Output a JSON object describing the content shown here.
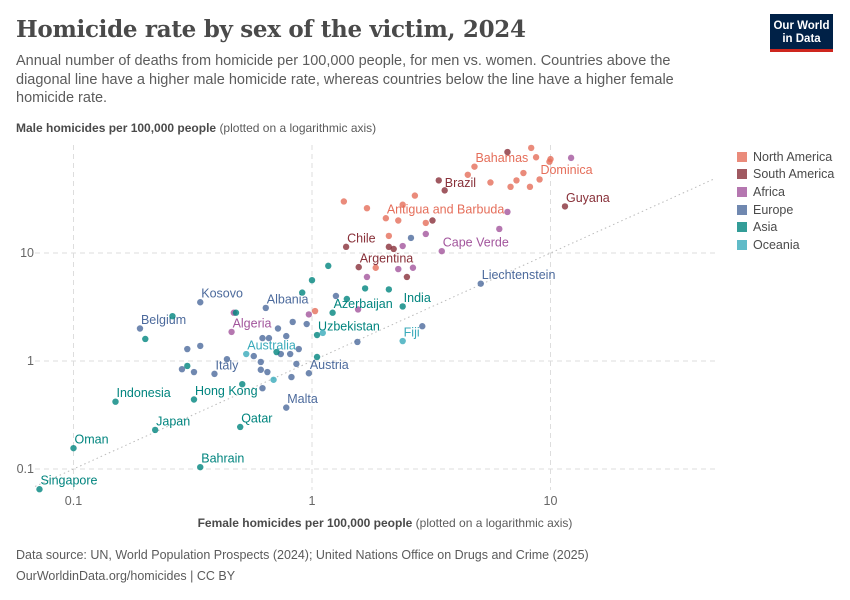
{
  "header": {
    "title": "Homicide rate by sex of the victim, 2024",
    "subtitle": "Annual number of deaths from homicide per 100,000 people, for men vs. women. Countries above the diagonal line have a higher male homicide rate, whereas countries below the line have a higher female homicide rate.",
    "logo": "Our World in Data"
  },
  "footer": {
    "source": "Data source: UN, World Population Prospects (2024); United Nations Office on Drugs and Crime (2025)",
    "link": "OurWorldinData.org/homicides | CC BY"
  },
  "chart_data": {
    "type": "scatter",
    "title": "Homicide rate by sex of the victim, 2024",
    "xlabel_bold": "Female homicides per 100,000 people",
    "xlabel_note": "(plotted on a logarithmic axis)",
    "ylabel_bold": "Male homicides per 100,000 people",
    "ylabel_note": "(plotted on a logarithmic axis)",
    "x_scale": "log",
    "y_scale": "log",
    "xlim": [
      0.069,
      49
    ],
    "ylim": [
      0.064,
      100
    ],
    "x_ticks": [
      "0.1",
      "1",
      "10"
    ],
    "y_ticks": [
      "0.1",
      "1",
      "10"
    ],
    "grid": true,
    "reference_line": "y = x (dotted diagonal)",
    "legend_position": "right",
    "legend": [
      {
        "name": "North America",
        "color": "#E56E5A"
      },
      {
        "name": "South America",
        "color": "#883039"
      },
      {
        "name": "Africa",
        "color": "#A2559C"
      },
      {
        "name": "Europe",
        "color": "#4C6A9C"
      },
      {
        "name": "Asia",
        "color": "#00847E"
      },
      {
        "name": "Oceania",
        "color": "#38AABA"
      }
    ],
    "points": [
      {
        "country": "Bahamas",
        "region": "North America",
        "x": 4.8,
        "y": 63
      },
      {
        "country": "Dominica",
        "region": "North America",
        "x": 9.9,
        "y": 70
      },
      {
        "country": "Antigua and Barbuda",
        "region": "North America",
        "x": 2.04,
        "y": 21
      },
      {
        "region": "North America",
        "x": 8.3,
        "y": 94
      },
      {
        "region": "North America",
        "x": 8.7,
        "y": 77
      },
      {
        "region": "North America",
        "x": 10,
        "y": 74
      },
      {
        "region": "North America",
        "x": 4.5,
        "y": 53
      },
      {
        "region": "North America",
        "x": 7.7,
        "y": 55
      },
      {
        "region": "North America",
        "x": 7.2,
        "y": 47
      },
      {
        "region": "North America",
        "x": 9.0,
        "y": 48
      },
      {
        "region": "North America",
        "x": 5.6,
        "y": 45
      },
      {
        "region": "North America",
        "x": 6.8,
        "y": 41
      },
      {
        "region": "North America",
        "x": 8.2,
        "y": 41
      },
      {
        "region": "North America",
        "x": 2.7,
        "y": 34
      },
      {
        "region": "North America",
        "x": 2.4,
        "y": 28
      },
      {
        "region": "North America",
        "x": 1.7,
        "y": 26
      },
      {
        "region": "North America",
        "x": 1.36,
        "y": 30
      },
      {
        "region": "North America",
        "x": 2.3,
        "y": 20
      },
      {
        "region": "North America",
        "x": 3.0,
        "y": 19
      },
      {
        "region": "North America",
        "x": 2.1,
        "y": 14.4
      },
      {
        "region": "North America",
        "x": 1.85,
        "y": 7.3
      },
      {
        "region": "North America",
        "x": 1.03,
        "y": 2.9
      },
      {
        "country": "Brazil",
        "region": "South America",
        "x": 3.4,
        "y": 47
      },
      {
        "country": "Guyana",
        "region": "South America",
        "x": 11.5,
        "y": 27
      },
      {
        "country": "Chile",
        "region": "South America",
        "x": 1.39,
        "y": 11.4
      },
      {
        "country": "Argentina",
        "region": "South America",
        "x": 1.57,
        "y": 7.4
      },
      {
        "region": "South America",
        "x": 6.6,
        "y": 86
      },
      {
        "region": "South America",
        "x": 3.6,
        "y": 38
      },
      {
        "region": "South America",
        "x": 3.2,
        "y": 20
      },
      {
        "region": "South America",
        "x": 2.1,
        "y": 11.4
      },
      {
        "region": "South America",
        "x": 2.2,
        "y": 10.9
      },
      {
        "region": "South America",
        "x": 2.5,
        "y": 6.0
      },
      {
        "country": "Cape Verde",
        "region": "Africa",
        "x": 3.5,
        "y": 10.4
      },
      {
        "country": "Algeria",
        "region": "Africa",
        "x": 0.46,
        "y": 1.86
      },
      {
        "region": "Africa",
        "x": 12.2,
        "y": 76
      },
      {
        "region": "Africa",
        "x": 6.6,
        "y": 24
      },
      {
        "region": "Africa",
        "x": 6.1,
        "y": 16.7
      },
      {
        "region": "Africa",
        "x": 3.0,
        "y": 15
      },
      {
        "region": "Africa",
        "x": 2.4,
        "y": 11.6
      },
      {
        "region": "Africa",
        "x": 2.3,
        "y": 7.1
      },
      {
        "region": "Africa",
        "x": 2.65,
        "y": 7.3
      },
      {
        "region": "Africa",
        "x": 1.7,
        "y": 6.0
      },
      {
        "region": "Africa",
        "x": 0.47,
        "y": 2.8
      },
      {
        "region": "Africa",
        "x": 0.97,
        "y": 2.7
      },
      {
        "region": "Africa",
        "x": 1.56,
        "y": 3.0
      },
      {
        "country": "Liechtenstein",
        "region": "Europe",
        "x": 5.1,
        "y": 5.2
      },
      {
        "country": "Kosovo",
        "region": "Europe",
        "x": 0.34,
        "y": 3.5
      },
      {
        "country": "Albania",
        "region": "Europe",
        "x": 0.64,
        "y": 3.1
      },
      {
        "country": "Belgium",
        "region": "Europe",
        "x": 0.19,
        "y": 2.0
      },
      {
        "country": "Italy",
        "region": "Europe",
        "x": 0.39,
        "y": 0.76
      },
      {
        "country": "Austria",
        "region": "Europe",
        "x": 0.97,
        "y": 0.77
      },
      {
        "country": "Malta",
        "region": "Europe",
        "x": 0.78,
        "y": 0.37
      },
      {
        "region": "Europe",
        "x": 2.6,
        "y": 13.8
      },
      {
        "region": "Europe",
        "x": 1.26,
        "y": 4.0
      },
      {
        "region": "Europe",
        "x": 0.83,
        "y": 2.3
      },
      {
        "region": "Europe",
        "x": 0.72,
        "y": 2.0
      },
      {
        "region": "Europe",
        "x": 0.95,
        "y": 2.2
      },
      {
        "region": "Europe",
        "x": 1.55,
        "y": 1.5
      },
      {
        "region": "Europe",
        "x": 2.9,
        "y": 2.1
      },
      {
        "region": "Europe",
        "x": 0.62,
        "y": 1.63
      },
      {
        "region": "Europe",
        "x": 0.66,
        "y": 1.63
      },
      {
        "region": "Europe",
        "x": 0.78,
        "y": 1.7
      },
      {
        "region": "Europe",
        "x": 0.3,
        "y": 1.29
      },
      {
        "region": "Europe",
        "x": 0.34,
        "y": 1.38
      },
      {
        "region": "Europe",
        "x": 0.57,
        "y": 1.11
      },
      {
        "region": "Europe",
        "x": 0.74,
        "y": 1.16
      },
      {
        "region": "Europe",
        "x": 0.81,
        "y": 1.16
      },
      {
        "region": "Europe",
        "x": 0.88,
        "y": 1.29
      },
      {
        "region": "Europe",
        "x": 0.44,
        "y": 1.04
      },
      {
        "region": "Europe",
        "x": 0.285,
        "y": 0.84
      },
      {
        "region": "Europe",
        "x": 0.32,
        "y": 0.79
      },
      {
        "region": "Europe",
        "x": 0.61,
        "y": 0.98
      },
      {
        "region": "Europe",
        "x": 0.61,
        "y": 0.83
      },
      {
        "region": "Europe",
        "x": 0.65,
        "y": 0.79
      },
      {
        "region": "Europe",
        "x": 0.86,
        "y": 0.94
      },
      {
        "region": "Europe",
        "x": 0.82,
        "y": 0.71
      },
      {
        "region": "Europe",
        "x": 0.62,
        "y": 0.56
      },
      {
        "country": "India",
        "region": "Asia",
        "x": 2.4,
        "y": 3.2
      },
      {
        "country": "Azerbaijan",
        "region": "Asia",
        "x": 1.22,
        "y": 2.8
      },
      {
        "country": "Uzbekistan",
        "region": "Asia",
        "x": 1.05,
        "y": 1.74
      },
      {
        "country": "Hong Kong",
        "region": "Asia",
        "x": 0.32,
        "y": 0.44
      },
      {
        "country": "Indonesia",
        "region": "Asia",
        "x": 0.15,
        "y": 0.42
      },
      {
        "country": "Qatar",
        "region": "Asia",
        "x": 0.5,
        "y": 0.245
      },
      {
        "country": "Japan",
        "region": "Asia",
        "x": 0.22,
        "y": 0.23
      },
      {
        "country": "Oman",
        "region": "Asia",
        "x": 0.1,
        "y": 0.156
      },
      {
        "country": "Bahrain",
        "region": "Asia",
        "x": 0.34,
        "y": 0.104
      },
      {
        "country": "Singapore",
        "region": "Asia",
        "x": 0.072,
        "y": 0.065
      },
      {
        "region": "Asia",
        "x": 1.17,
        "y": 7.6
      },
      {
        "region": "Asia",
        "x": 1.67,
        "y": 4.7
      },
      {
        "region": "Asia",
        "x": 2.1,
        "y": 4.6
      },
      {
        "region": "Asia",
        "x": 1.0,
        "y": 5.6
      },
      {
        "region": "Asia",
        "x": 0.91,
        "y": 4.3
      },
      {
        "region": "Asia",
        "x": 0.48,
        "y": 2.8
      },
      {
        "region": "Asia",
        "x": 1.4,
        "y": 3.75
      },
      {
        "region": "Asia",
        "x": 0.2,
        "y": 1.6
      },
      {
        "region": "Asia",
        "x": 0.26,
        "y": 2.6
      },
      {
        "region": "Asia",
        "x": 0.3,
        "y": 0.9
      },
      {
        "region": "Asia",
        "x": 0.51,
        "y": 0.61
      },
      {
        "region": "Asia",
        "x": 1.05,
        "y": 1.09
      },
      {
        "region": "Asia",
        "x": 0.71,
        "y": 1.21
      },
      {
        "country": "Australia",
        "region": "Oceania",
        "x": 0.53,
        "y": 1.16
      },
      {
        "country": "Fiji",
        "region": "Oceania",
        "x": 2.4,
        "y": 1.53
      },
      {
        "region": "Oceania",
        "x": 1.11,
        "y": 1.82
      },
      {
        "region": "Oceania",
        "x": 0.69,
        "y": 0.67
      }
    ]
  }
}
